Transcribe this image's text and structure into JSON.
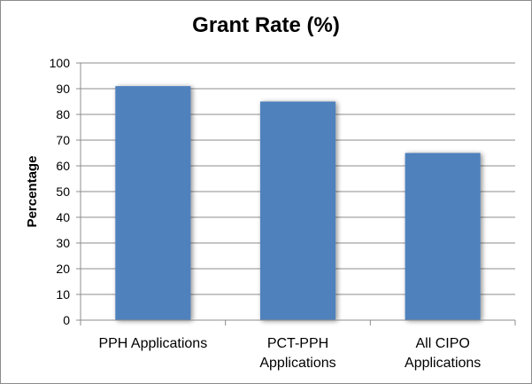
{
  "chart_data": {
    "type": "bar",
    "title": "Grant Rate (%)",
    "xlabel": "",
    "ylabel": "Percentage",
    "categories": [
      [
        "PPH Applications"
      ],
      [
        "PCT-PPH",
        "Applications"
      ],
      [
        "All CIPO",
        "Applications"
      ]
    ],
    "values": [
      91,
      85,
      65
    ],
    "ylim": [
      0,
      100
    ],
    "ytick_step": 10,
    "grid": true,
    "legend": "none",
    "bar_color": "#4f81bd"
  }
}
